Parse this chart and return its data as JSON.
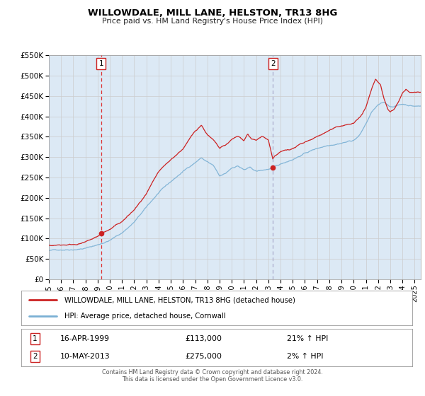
{
  "title": "WILLOWDALE, MILL LANE, HELSTON, TR13 8HG",
  "subtitle": "Price paid vs. HM Land Registry's House Price Index (HPI)",
  "bg_color": "#dce9f5",
  "fig_bg_color": "#ffffff",
  "ylim": [
    0,
    550000
  ],
  "yticks": [
    0,
    50000,
    100000,
    150000,
    200000,
    250000,
    300000,
    350000,
    400000,
    450000,
    500000,
    550000
  ],
  "ytick_labels": [
    "£0",
    "£50K",
    "£100K",
    "£150K",
    "£200K",
    "£250K",
    "£300K",
    "£350K",
    "£400K",
    "£450K",
    "£500K",
    "£550K"
  ],
  "xlim_start": 1995.0,
  "xlim_end": 2025.5,
  "xticks": [
    1995,
    1996,
    1997,
    1998,
    1999,
    2000,
    2001,
    2002,
    2003,
    2004,
    2005,
    2006,
    2007,
    2008,
    2009,
    2010,
    2011,
    2012,
    2013,
    2014,
    2015,
    2016,
    2017,
    2018,
    2019,
    2020,
    2021,
    2022,
    2023,
    2024,
    2025
  ],
  "sale1_x": 1999.29,
  "sale1_y": 113000,
  "sale1_label": "1",
  "sale1_date": "16-APR-1999",
  "sale1_price": "£113,000",
  "sale1_hpi": "21% ↑ HPI",
  "sale1_vline_color": "#dd3333",
  "sale1_vline_style": "dashed",
  "sale2_x": 2013.37,
  "sale2_y": 275000,
  "sale2_label": "2",
  "sale2_date": "10-MAY-2013",
  "sale2_price": "£275,000",
  "sale2_hpi": "2% ↑ HPI",
  "sale2_vline_color": "#aaaacc",
  "sale2_vline_style": "dashed",
  "red_line_color": "#cc2222",
  "blue_line_color": "#7ab0d4",
  "marker_color": "#cc2222",
  "grid_color": "#cccccc",
  "grid_color_major": "#bbbbbb",
  "legend_label_red": "WILLOWDALE, MILL LANE, HELSTON, TR13 8HG (detached house)",
  "legend_label_blue": "HPI: Average price, detached house, Cornwall",
  "footer_text": "Contains HM Land Registry data © Crown copyright and database right 2024.\nThis data is licensed under the Open Government Licence v3.0."
}
